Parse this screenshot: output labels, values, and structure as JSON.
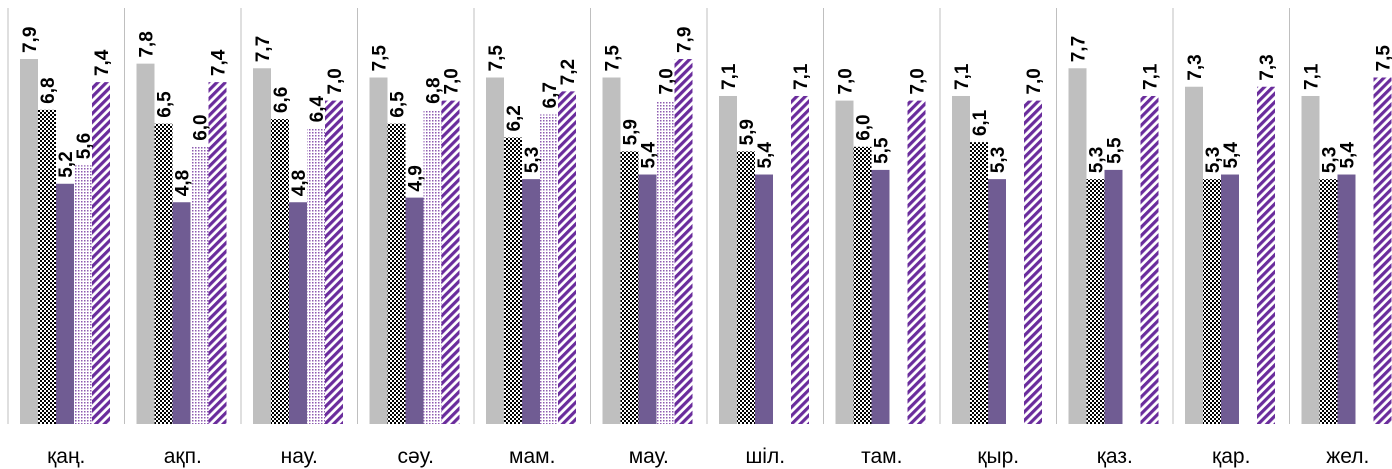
{
  "chart_data": {
    "type": "bar",
    "categories": [
      "қаң.",
      "ақп.",
      "нау.",
      "сәу.",
      "мам.",
      "мау.",
      "шіл.",
      "там.",
      "қыр.",
      "қаз.",
      "қар.",
      "жел."
    ],
    "series": [
      {
        "values": [
          7.9,
          7.8,
          7.7,
          7.5,
          7.5,
          7.5,
          7.1,
          7.0,
          7.1,
          7.7,
          7.3,
          7.1
        ],
        "labels": [
          "7,9",
          "7,8",
          "7,7",
          "7,5",
          "7,5",
          "7,5",
          "7,1",
          "7,0",
          "7,1",
          "7,7",
          "7,3",
          "7,1"
        ]
      },
      {
        "values": [
          6.8,
          6.5,
          6.6,
          6.5,
          6.2,
          5.9,
          5.9,
          6.0,
          6.1,
          5.3,
          5.3,
          5.3
        ],
        "labels": [
          "6,8",
          "6,5",
          "6,6",
          "6,5",
          "6,2",
          "5,9",
          "5,9",
          "6,0",
          "6,1",
          "5,3",
          "5,3",
          "5,3"
        ]
      },
      {
        "values": [
          5.2,
          4.8,
          4.8,
          4.9,
          5.3,
          5.4,
          5.4,
          5.5,
          5.3,
          5.5,
          5.4,
          5.4
        ],
        "labels": [
          "5,2",
          "4,8",
          "4,8",
          "4,9",
          "5,3",
          "5,4",
          "5,4",
          "5,5",
          "5,3",
          "5,5",
          "5,4",
          "5,4"
        ]
      },
      {
        "values": [
          5.6,
          6.0,
          6.4,
          6.8,
          6.7,
          7.0,
          null,
          null,
          null,
          null,
          null,
          null
        ],
        "labels": [
          "5,6",
          "6,0",
          "6,4",
          "6,8",
          "6,7",
          "7,0",
          "",
          "",
          "",
          "",
          "",
          ""
        ]
      },
      {
        "values": [
          7.4,
          7.4,
          7.0,
          7.0,
          7.2,
          7.9,
          7.1,
          7.0,
          7.0,
          7.1,
          7.3,
          7.5
        ],
        "labels": [
          "7,4",
          "7,4",
          "7,0",
          "7,0",
          "7,2",
          "7,9",
          "7,1",
          "7,0",
          "7,0",
          "7,1",
          "7,3",
          "7,5"
        ]
      }
    ],
    "colors": [
      "#bfbfbf",
      "#000000",
      "#705c93",
      "#8e5bb0",
      "#6a2c9c"
    ],
    "ylim": [
      0,
      9.1
    ],
    "grid": false,
    "legend": "none"
  }
}
